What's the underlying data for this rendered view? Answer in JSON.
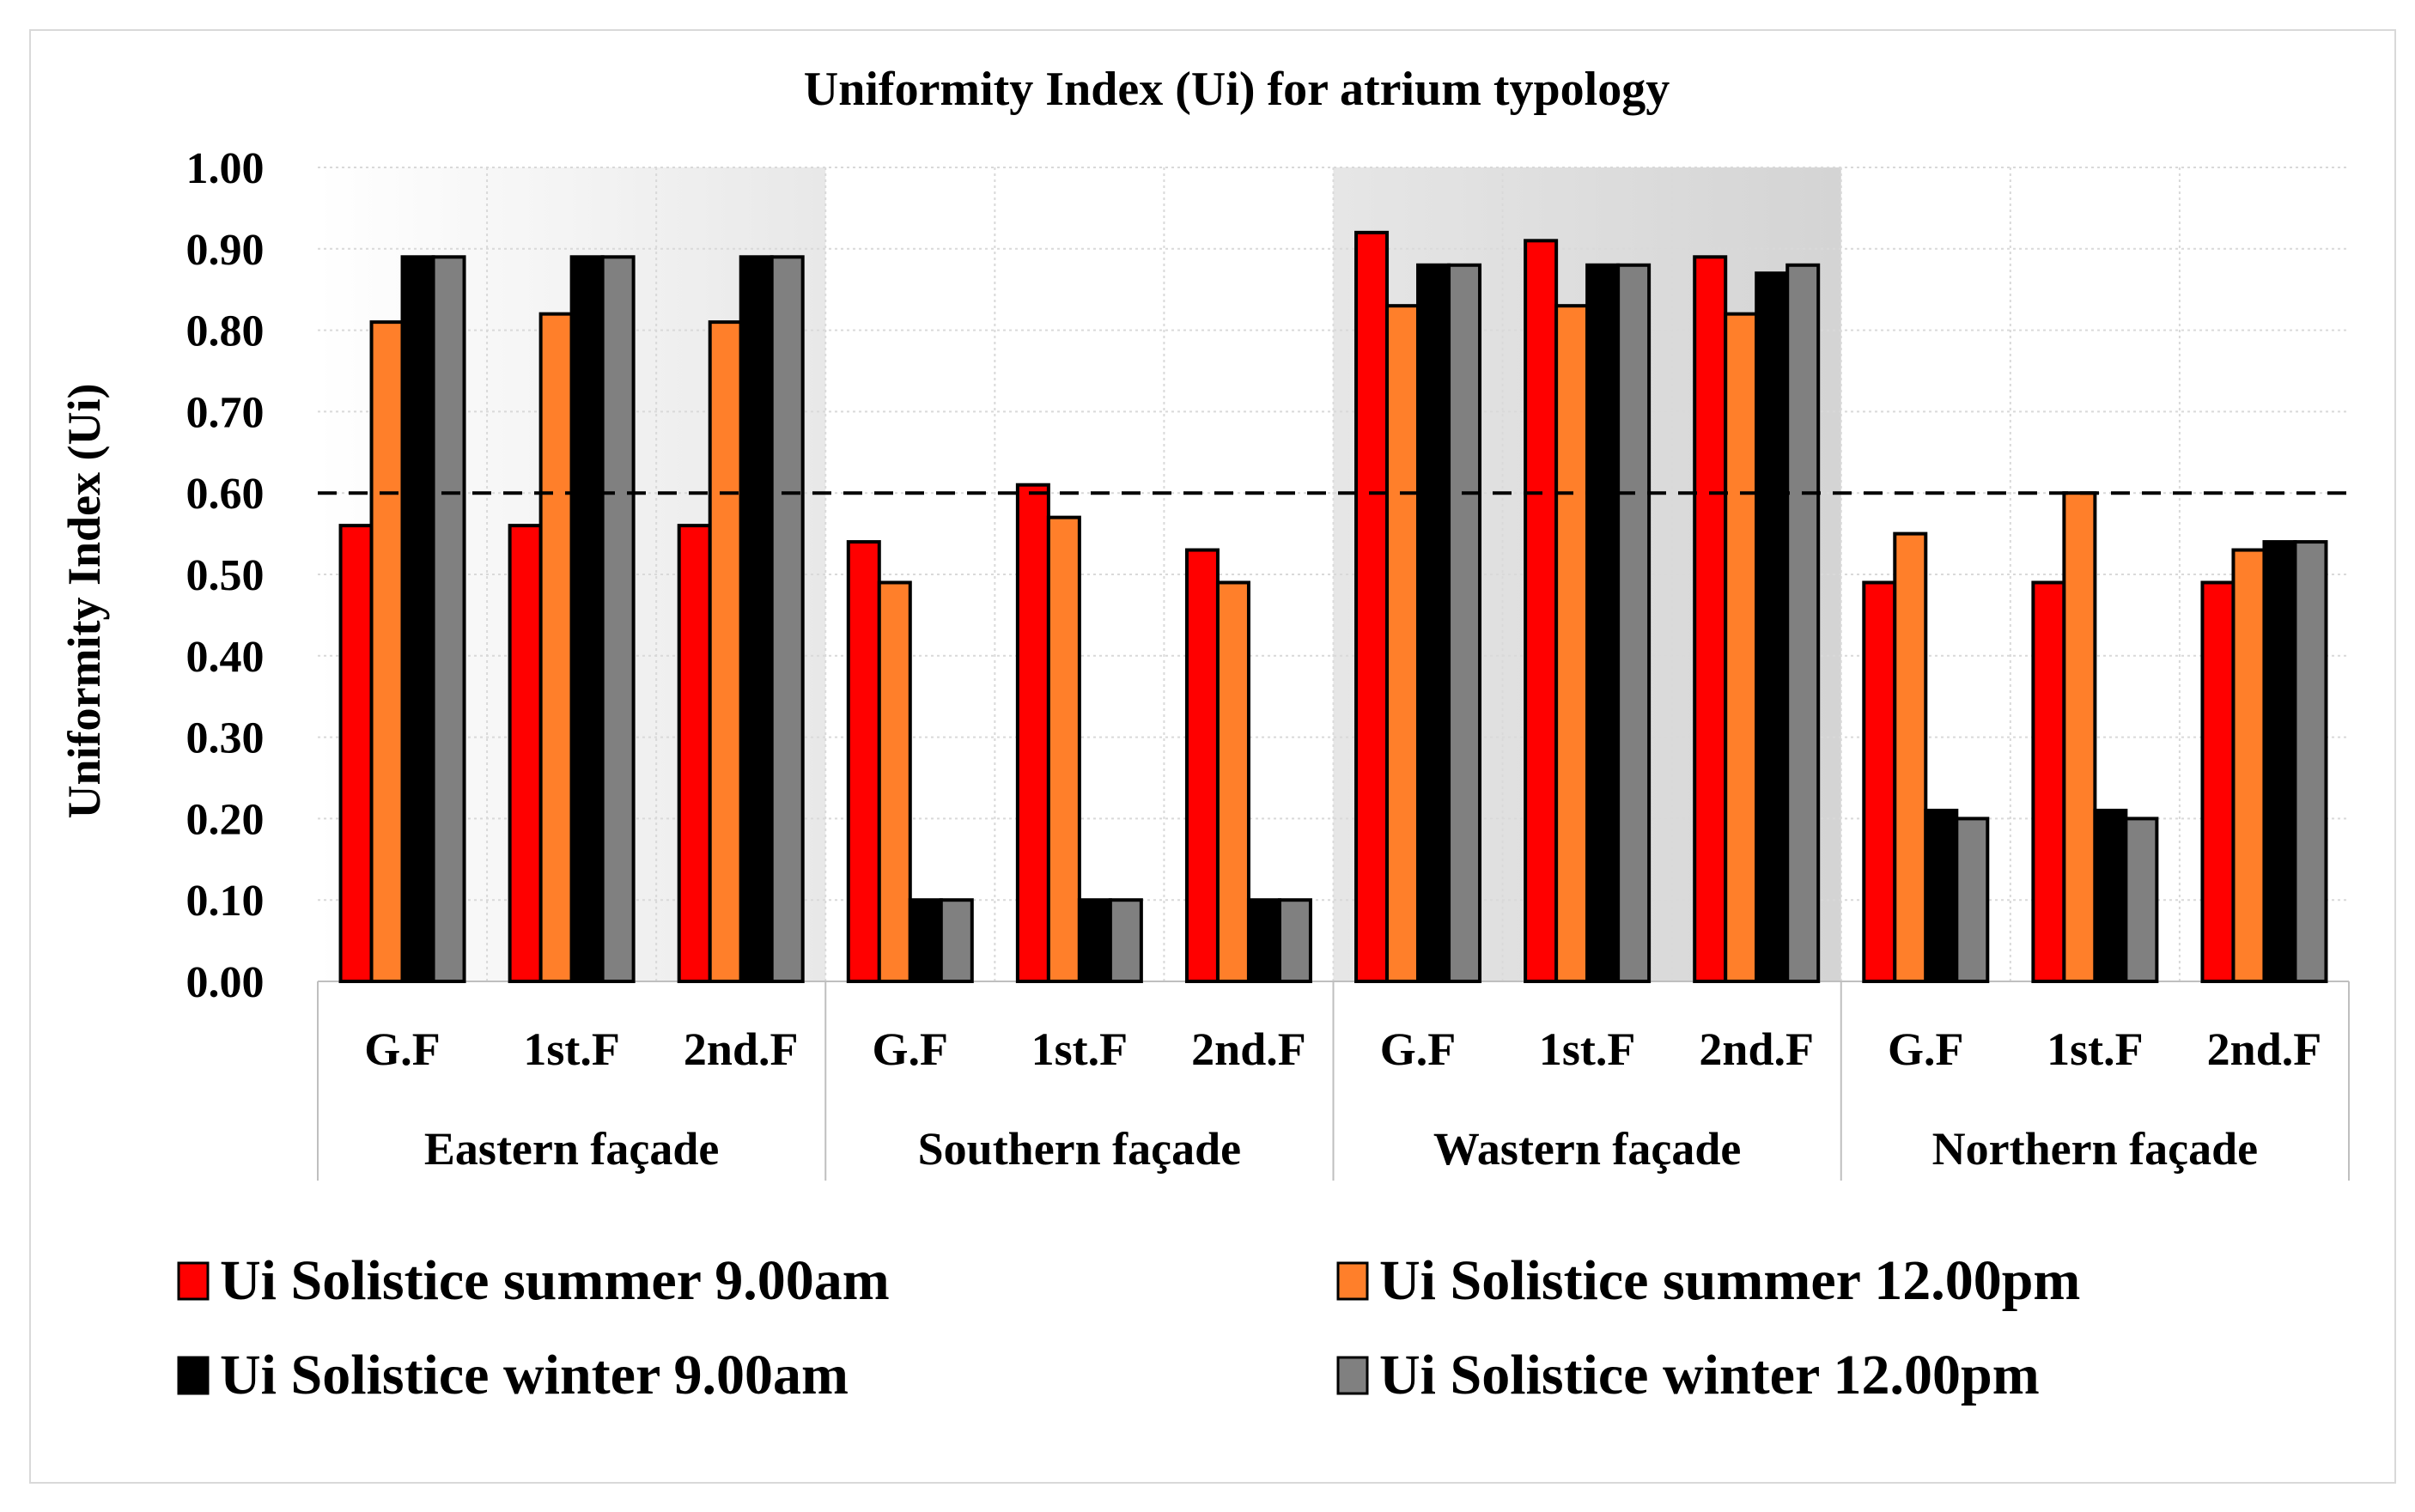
{
  "chart_data": {
    "type": "bar",
    "title": "Uniformity Index (Ui) for atrium typology",
    "ylabel": "Uniformity Index (Ui)",
    "xlabel": "",
    "ylim": [
      0,
      1
    ],
    "yticks": [
      "0.00",
      "0.10",
      "0.20",
      "0.30",
      "0.40",
      "0.50",
      "0.60",
      "0.70",
      "0.80",
      "0.90",
      "1.00"
    ],
    "reference_line": 0.6,
    "groups": [
      {
        "label": "Eastern façade",
        "floors": [
          "G.F",
          "1st.F",
          "2nd.F"
        ]
      },
      {
        "label": "Southern façade",
        "floors": [
          "G.F",
          "1st.F",
          "2nd.F"
        ]
      },
      {
        "label": "Wastern façade",
        "floors": [
          "G.F",
          "1st.F",
          "2nd.F"
        ]
      },
      {
        "label": "Northern façade",
        "floors": [
          "G.F",
          "1st.F",
          "2nd.F"
        ]
      }
    ],
    "categories": [
      "G.F",
      "1st.F",
      "2nd.F",
      "G.F",
      "1st.F",
      "2nd.F",
      "G.F",
      "1st.F",
      "2nd.F",
      "G.F",
      "1st.F",
      "2nd.F"
    ],
    "series": [
      {
        "name": "Ui Solistice summer 9.00am",
        "color": "#ff0000",
        "values": [
          0.56,
          0.56,
          0.56,
          0.54,
          0.61,
          0.53,
          0.92,
          0.91,
          0.89,
          0.49,
          0.49,
          0.49
        ]
      },
      {
        "name": "Ui Solistice summer 12.00pm",
        "color": "#ff7f2a",
        "values": [
          0.81,
          0.82,
          0.81,
          0.49,
          0.57,
          0.49,
          0.83,
          0.83,
          0.82,
          0.55,
          0.6,
          0.53
        ]
      },
      {
        "name": "Ui Solistice winter 9.00am",
        "color": "#000000",
        "values": [
          0.89,
          0.89,
          0.89,
          0.1,
          0.1,
          0.1,
          0.88,
          0.88,
          0.87,
          0.21,
          0.21,
          0.54
        ]
      },
      {
        "name": "Ui Solistice winter 12.00pm",
        "color": "#808080",
        "values": [
          0.89,
          0.89,
          0.89,
          0.1,
          0.1,
          0.1,
          0.88,
          0.88,
          0.88,
          0.2,
          0.2,
          0.54
        ]
      }
    ],
    "legend_position": "bottom",
    "grid": true
  }
}
